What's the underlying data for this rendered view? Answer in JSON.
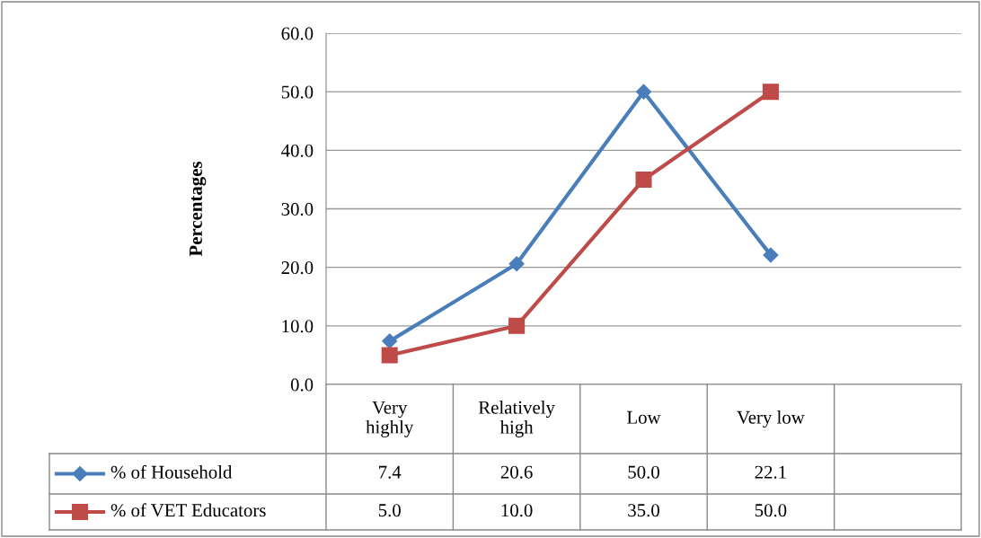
{
  "chart_data": {
    "type": "line",
    "ylabel": "Percentages",
    "categories": [
      "Very\nhighly",
      "Relatively\nhigh",
      "Low",
      "Very low",
      null
    ],
    "series": [
      {
        "name": "% of Household",
        "color": "#4a7ebb",
        "marker": "diamond",
        "values": [
          7.4,
          20.6,
          50.0,
          22.1,
          null
        ],
        "value_labels": [
          "7.4",
          "20.6",
          "50.0",
          "22.1",
          null
        ]
      },
      {
        "name": "% of VET Educators",
        "color": "#be4b48",
        "marker": "square",
        "values": [
          5.0,
          10.0,
          35.0,
          50.0,
          null
        ],
        "value_labels": [
          "5.0",
          "10.0",
          "35.0",
          "50.0",
          null
        ]
      }
    ],
    "ylim": [
      0,
      60
    ],
    "yticks": [
      {
        "value": 0,
        "label": "0.0"
      },
      {
        "value": 10,
        "label": "10.0"
      },
      {
        "value": 20,
        "label": "20.0"
      },
      {
        "value": 30,
        "label": "30.0"
      },
      {
        "value": 40,
        "label": "40.0"
      },
      {
        "value": 50,
        "label": "50.0"
      },
      {
        "value": 60,
        "label": "60.0"
      }
    ],
    "grid": "y",
    "legend": "bottom",
    "line_style": "solid"
  }
}
